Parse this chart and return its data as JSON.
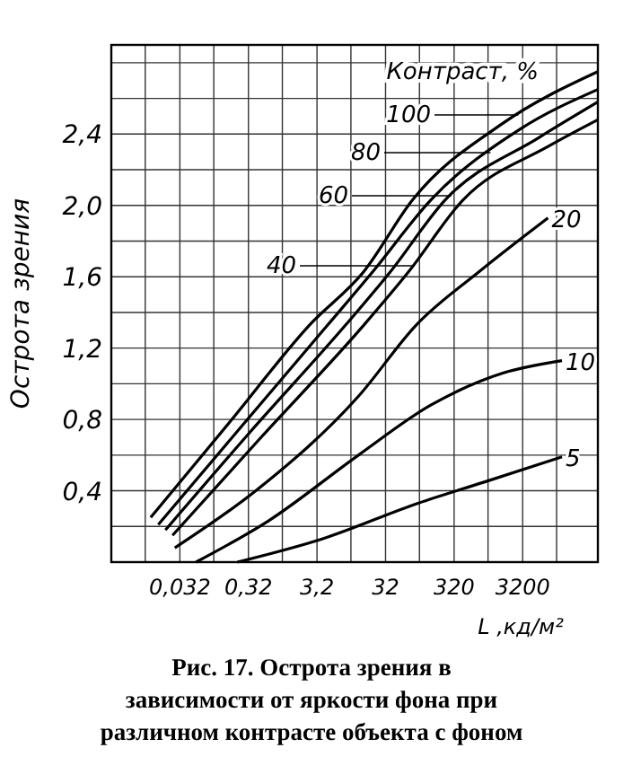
{
  "chart_data": {
    "type": "line",
    "xlabel": "L ,кд/м²",
    "ylabel": "Острота зрения",
    "legend_title": "Контраст, %",
    "log": "x",
    "grid": true,
    "legend": "top right",
    "line_style": "solid",
    "marker": "none",
    "xlim": [
      0.0032,
      40000
    ],
    "ylim": [
      0,
      2.9
    ],
    "xticks": [
      {
        "value": 0.01,
        "label": null
      },
      {
        "value": 0.032,
        "label": "0,032"
      },
      {
        "value": 0.1,
        "label": null
      },
      {
        "value": 0.32,
        "label": "0,32"
      },
      {
        "value": 1,
        "label": null
      },
      {
        "value": 3.2,
        "label": "3,2"
      },
      {
        "value": 10,
        "label": null
      },
      32,
      {
        "value": 100,
        "label": null
      },
      320,
      {
        "value": 1000,
        "label": null
      },
      3200,
      {
        "value": 10000,
        "label": null
      }
    ],
    "yticks": [
      {
        "value": 0.2,
        "label": null
      },
      {
        "value": 0.4,
        "label": "0,4"
      },
      {
        "value": 0.6,
        "label": null
      },
      {
        "value": 0.8,
        "label": "0,8"
      },
      {
        "value": 1,
        "label": null
      },
      {
        "value": 1.2,
        "label": "1,2"
      },
      {
        "value": 1.4,
        "label": null
      },
      {
        "value": 1.6,
        "label": "1,6"
      },
      {
        "value": 1.8,
        "label": null
      },
      {
        "value": 2,
        "label": "2,0"
      },
      {
        "value": 2.2,
        "label": null
      },
      {
        "value": 2.4,
        "label": "2,4"
      },
      {
        "value": 2.6,
        "label": null
      },
      {
        "value": 2.8,
        "label": null
      }
    ],
    "series": [
      {
        "name": "100",
        "color": "#000000",
        "x": [
          0.012,
          0.175,
          2.5,
          15.5,
          79,
          1640,
          40000
        ],
        "values": [
          0.25,
          0.79,
          1.33,
          1.63,
          2.03,
          2.46,
          2.75
        ]
      },
      {
        "name": "80",
        "color": "#000000",
        "x": [
          0.0155,
          0.24,
          4.6,
          21,
          146,
          3000,
          40000
        ],
        "values": [
          0.21,
          0.75,
          1.33,
          1.63,
          2.03,
          2.43,
          2.65
        ]
      },
      {
        "name": "60",
        "color": "#000000",
        "x": [
          0.0197,
          0.34,
          8.4,
          38,
          236,
          5500,
          40000
        ],
        "values": [
          0.18,
          0.73,
          1.33,
          1.63,
          2.03,
          2.38,
          2.58
        ]
      },
      {
        "name": "40",
        "color": "#000000",
        "x": [
          0.025,
          0.49,
          15.5,
          70,
          430,
          7500,
          40000
        ],
        "values": [
          0.15,
          0.7,
          1.33,
          1.63,
          2.03,
          2.33,
          2.48
        ]
      },
      {
        "name": "20",
        "color": "#000000",
        "x": [
          0.027,
          0.41,
          12.9,
          90,
          750,
          7500
        ],
        "values": [
          0.08,
          0.4,
          0.93,
          1.33,
          1.63,
          1.93
        ]
      },
      {
        "name": "10",
        "color": "#000000",
        "x": [
          0.055,
          0.62,
          12.9,
          146,
          1640,
          12000
        ],
        "values": [
          0,
          0.23,
          0.6,
          0.88,
          1.06,
          1.13
        ]
      },
      {
        "name": "5",
        "color": "#000000",
        "x": [
          0.22,
          3.8,
          95,
          900,
          12000
        ],
        "values": [
          0,
          0.13,
          0.33,
          0.45,
          0.59
        ]
      }
    ],
    "annotations": [
      "Рис. 17. Острота зрения в зависимости от яркости фона при различном контрасте объекта с фоном"
    ]
  }
}
